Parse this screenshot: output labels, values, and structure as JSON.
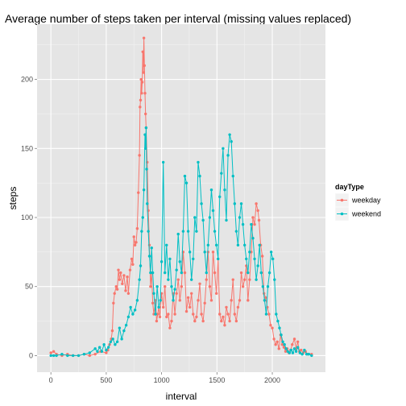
{
  "chart_data": {
    "type": "line",
    "title": "Average number of steps taken per interval (missing values replaced)",
    "xlabel": "interval",
    "ylabel": "steps",
    "xlim": [
      -125,
      2480
    ],
    "ylim": [
      -12,
      240
    ],
    "x_ticks": [
      0,
      500,
      1000,
      1500,
      2000
    ],
    "x_tick_labels": [
      "0",
      "500",
      "1000",
      "1500",
      "2000"
    ],
    "y_ticks": [
      0,
      50,
      100,
      150,
      200
    ],
    "y_tick_labels": [
      "0",
      "50",
      "100",
      "150",
      "200"
    ],
    "grid": true,
    "legend": {
      "title": "dayType",
      "position": "right"
    },
    "series": [
      {
        "name": "weekday",
        "color": "#F8766D",
        "points": [
          [
            0,
            2
          ],
          [
            25,
            3
          ],
          [
            50,
            1
          ],
          [
            100,
            0
          ],
          [
            150,
            1
          ],
          [
            200,
            0
          ],
          [
            250,
            0
          ],
          [
            300,
            1
          ],
          [
            350,
            0
          ],
          [
            400,
            1
          ],
          [
            450,
            3
          ],
          [
            500,
            2
          ],
          [
            515,
            4
          ],
          [
            530,
            8
          ],
          [
            545,
            12
          ],
          [
            555,
            18
          ],
          [
            565,
            38
          ],
          [
            575,
            45
          ],
          [
            590,
            50
          ],
          [
            600,
            48
          ],
          [
            610,
            62
          ],
          [
            620,
            55
          ],
          [
            630,
            60
          ],
          [
            645,
            52
          ],
          [
            660,
            58
          ],
          [
            675,
            47
          ],
          [
            690,
            57
          ],
          [
            700,
            45
          ],
          [
            715,
            62
          ],
          [
            730,
            70
          ],
          [
            740,
            66
          ],
          [
            750,
            86
          ],
          [
            760,
            80
          ],
          [
            770,
            82
          ],
          [
            780,
            92
          ],
          [
            790,
            118
          ],
          [
            800,
            145
          ],
          [
            805,
            180
          ],
          [
            810,
            185
          ],
          [
            815,
            200
          ],
          [
            820,
            190
          ],
          [
            825,
            198
          ],
          [
            830,
            220
          ],
          [
            835,
            205
          ],
          [
            840,
            230
          ],
          [
            845,
            210
          ],
          [
            850,
            190
          ],
          [
            855,
            175
          ],
          [
            860,
            165
          ],
          [
            870,
            140
          ],
          [
            880,
            105
          ],
          [
            890,
            80
          ],
          [
            900,
            50
          ],
          [
            910,
            60
          ],
          [
            920,
            38
          ],
          [
            930,
            30
          ],
          [
            945,
            40
          ],
          [
            955,
            25
          ],
          [
            965,
            30
          ],
          [
            975,
            35
          ],
          [
            985,
            28
          ],
          [
            1000,
            45
          ],
          [
            1015,
            35
          ],
          [
            1030,
            50
          ],
          [
            1045,
            28
          ],
          [
            1060,
            30
          ],
          [
            1075,
            20
          ],
          [
            1090,
            25
          ],
          [
            1105,
            45
          ],
          [
            1120,
            30
          ],
          [
            1135,
            45
          ],
          [
            1150,
            55
          ],
          [
            1165,
            40
          ],
          [
            1180,
            50
          ],
          [
            1195,
            75
          ],
          [
            1210,
            60
          ],
          [
            1225,
            32
          ],
          [
            1240,
            42
          ],
          [
            1255,
            35
          ],
          [
            1270,
            45
          ],
          [
            1285,
            30
          ],
          [
            1300,
            25
          ],
          [
            1315,
            28
          ],
          [
            1330,
            40
          ],
          [
            1345,
            52
          ],
          [
            1360,
            30
          ],
          [
            1375,
            25
          ],
          [
            1390,
            38
          ],
          [
            1405,
            55
          ],
          [
            1420,
            75
          ],
          [
            1435,
            50
          ],
          [
            1450,
            40
          ],
          [
            1465,
            75
          ],
          [
            1480,
            60
          ],
          [
            1495,
            45
          ],
          [
            1510,
            70
          ],
          [
            1525,
            30
          ],
          [
            1540,
            25
          ],
          [
            1555,
            28
          ],
          [
            1570,
            22
          ],
          [
            1585,
            35
          ],
          [
            1600,
            30
          ],
          [
            1615,
            25
          ],
          [
            1630,
            40
          ],
          [
            1645,
            55
          ],
          [
            1660,
            30
          ],
          [
            1675,
            25
          ],
          [
            1690,
            35
          ],
          [
            1705,
            40
          ],
          [
            1720,
            60
          ],
          [
            1735,
            50
          ],
          [
            1750,
            55
          ],
          [
            1765,
            65
          ],
          [
            1780,
            40
          ],
          [
            1795,
            55
          ],
          [
            1810,
            75
          ],
          [
            1825,
            100
          ],
          [
            1840,
            95
          ],
          [
            1855,
            110
          ],
          [
            1870,
            105
          ],
          [
            1880,
            98
          ],
          [
            1895,
            80
          ],
          [
            1910,
            72
          ],
          [
            1925,
            45
          ],
          [
            1940,
            42
          ],
          [
            1955,
            35
          ],
          [
            1970,
            30
          ],
          [
            1985,
            22
          ],
          [
            2000,
            20
          ],
          [
            2015,
            12
          ],
          [
            2030,
            8
          ],
          [
            2045,
            10
          ],
          [
            2060,
            5
          ],
          [
            2075,
            15
          ],
          [
            2090,
            8
          ],
          [
            2105,
            6
          ],
          [
            2120,
            3
          ],
          [
            2135,
            5
          ],
          [
            2150,
            2
          ],
          [
            2165,
            4
          ],
          [
            2180,
            8
          ],
          [
            2200,
            12
          ],
          [
            2215,
            5
          ],
          [
            2230,
            10
          ],
          [
            2245,
            3
          ],
          [
            2260,
            4
          ],
          [
            2280,
            2
          ],
          [
            2300,
            3
          ],
          [
            2320,
            1
          ],
          [
            2355,
            1
          ]
        ]
      },
      {
        "name": "weekend",
        "color": "#00BFC4",
        "points": [
          [
            0,
            0
          ],
          [
            25,
            0
          ],
          [
            50,
            0
          ],
          [
            100,
            1
          ],
          [
            150,
            0
          ],
          [
            200,
            0
          ],
          [
            250,
            0
          ],
          [
            300,
            1
          ],
          [
            350,
            2
          ],
          [
            400,
            5
          ],
          [
            420,
            3
          ],
          [
            440,
            6
          ],
          [
            460,
            3
          ],
          [
            480,
            8
          ],
          [
            500,
            4
          ],
          [
            520,
            6
          ],
          [
            540,
            10
          ],
          [
            560,
            12
          ],
          [
            580,
            8
          ],
          [
            600,
            10
          ],
          [
            620,
            20
          ],
          [
            640,
            12
          ],
          [
            660,
            18
          ],
          [
            680,
            22
          ],
          [
            700,
            28
          ],
          [
            720,
            35
          ],
          [
            740,
            30
          ],
          [
            760,
            33
          ],
          [
            780,
            40
          ],
          [
            800,
            55
          ],
          [
            810,
            65
          ],
          [
            820,
            90
          ],
          [
            830,
            100
          ],
          [
            840,
            120
          ],
          [
            850,
            160
          ],
          [
            855,
            150
          ],
          [
            860,
            165
          ],
          [
            865,
            135
          ],
          [
            870,
            110
          ],
          [
            880,
            90
          ],
          [
            890,
            72
          ],
          [
            900,
            60
          ],
          [
            910,
            78
          ],
          [
            920,
            60
          ],
          [
            930,
            45
          ],
          [
            945,
            30
          ],
          [
            960,
            50
          ],
          [
            975,
            35
          ],
          [
            990,
            40
          ],
          [
            1000,
            68
          ],
          [
            1015,
            140
          ],
          [
            1030,
            60
          ],
          [
            1045,
            80
          ],
          [
            1060,
            55
          ],
          [
            1075,
            70
          ],
          [
            1090,
            50
          ],
          [
            1105,
            40
          ],
          [
            1120,
            48
          ],
          [
            1135,
            62
          ],
          [
            1150,
            88
          ],
          [
            1165,
            68
          ],
          [
            1180,
            60
          ],
          [
            1195,
            90
          ],
          [
            1210,
            130
          ],
          [
            1225,
            125
          ],
          [
            1240,
            90
          ],
          [
            1255,
            75
          ],
          [
            1270,
            55
          ],
          [
            1285,
            70
          ],
          [
            1300,
            100
          ],
          [
            1315,
            90
          ],
          [
            1330,
            140
          ],
          [
            1345,
            130
          ],
          [
            1360,
            110
          ],
          [
            1375,
            98
          ],
          [
            1390,
            75
          ],
          [
            1405,
            60
          ],
          [
            1420,
            80
          ],
          [
            1435,
            100
          ],
          [
            1450,
            120
          ],
          [
            1465,
            105
          ],
          [
            1480,
            90
          ],
          [
            1495,
            80
          ],
          [
            1510,
            70
          ],
          [
            1525,
            115
          ],
          [
            1540,
            132
          ],
          [
            1555,
            150
          ],
          [
            1570,
            120
          ],
          [
            1585,
            98
          ],
          [
            1600,
            145
          ],
          [
            1615,
            160
          ],
          [
            1630,
            155
          ],
          [
            1645,
            130
          ],
          [
            1660,
            110
          ],
          [
            1675,
            90
          ],
          [
            1690,
            80
          ],
          [
            1705,
            100
          ],
          [
            1720,
            110
          ],
          [
            1735,
            95
          ],
          [
            1750,
            80
          ],
          [
            1765,
            70
          ],
          [
            1780,
            60
          ],
          [
            1795,
            75
          ],
          [
            1810,
            95
          ],
          [
            1825,
            85
          ],
          [
            1840,
            70
          ],
          [
            1855,
            55
          ],
          [
            1870,
            65
          ],
          [
            1885,
            80
          ],
          [
            1900,
            60
          ],
          [
            1915,
            50
          ],
          [
            1930,
            40
          ],
          [
            1945,
            30
          ],
          [
            1960,
            50
          ],
          [
            1975,
            60
          ],
          [
            1990,
            75
          ],
          [
            2005,
            70
          ],
          [
            2020,
            55
          ],
          [
            2035,
            30
          ],
          [
            2050,
            25
          ],
          [
            2065,
            20
          ],
          [
            2080,
            15
          ],
          [
            2095,
            10
          ],
          [
            2110,
            8
          ],
          [
            2125,
            5
          ],
          [
            2140,
            3
          ],
          [
            2155,
            2
          ],
          [
            2170,
            4
          ],
          [
            2185,
            2
          ],
          [
            2200,
            5
          ],
          [
            2215,
            3
          ],
          [
            2230,
            6
          ],
          [
            2250,
            2
          ],
          [
            2270,
            1
          ],
          [
            2290,
            4
          ],
          [
            2310,
            1
          ],
          [
            2330,
            1
          ],
          [
            2355,
            0
          ]
        ]
      }
    ]
  }
}
